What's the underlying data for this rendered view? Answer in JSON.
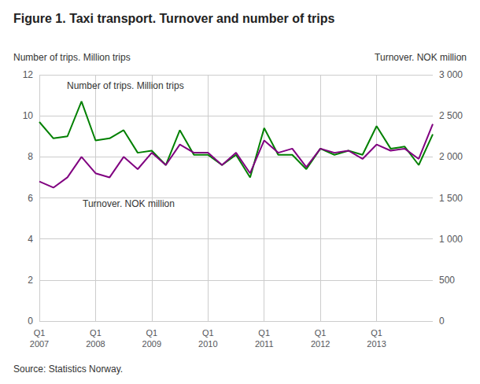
{
  "chart_data": {
    "type": "line",
    "title": "Figure 1. Taxi transport. Turnover and number of trips",
    "ylabel": "Number of trips. Million trips",
    "y2label": "Turnover. NOK million",
    "annotations": [
      "Number of trips. Million trips",
      "Turnover. NOK million"
    ],
    "source": "Source: Statistics Norway.",
    "categories": [
      "Q1\n2007",
      null,
      null,
      null,
      "Q1\n2008",
      null,
      null,
      null,
      "Q1\n2009",
      null,
      null,
      null,
      "Q1\n2010",
      null,
      null,
      null,
      "Q1\n2011",
      null,
      null,
      null,
      "Q1\n2012",
      null,
      null,
      null,
      "Q1\n2013",
      null,
      null,
      null,
      null
    ],
    "series": [
      {
        "color": "#008000",
        "axis": "y",
        "values": [
          9.7,
          8.9,
          9.0,
          10.7,
          8.8,
          8.9,
          9.3,
          8.2,
          8.3,
          7.6,
          9.3,
          8.1,
          8.1,
          7.6,
          8.1,
          7.0,
          9.4,
          8.1,
          8.1,
          7.4,
          8.4,
          8.1,
          8.3,
          8.1,
          9.5,
          8.4,
          8.5,
          7.6,
          9.1
        ]
      },
      {
        "color": "#800080",
        "axis": "y2",
        "values": [
          1700,
          1625,
          1750,
          2000,
          1800,
          1750,
          2000,
          1850,
          2050,
          1900,
          2150,
          2050,
          2050,
          1900,
          2050,
          1800,
          2200,
          2050,
          2100,
          1875,
          2100,
          2050,
          2075,
          1975,
          2150,
          2075,
          2100,
          1975,
          2400
        ]
      }
    ],
    "ylim": [
      0,
      12
    ],
    "yticks": [
      0,
      2,
      4,
      6,
      8,
      10,
      12
    ],
    "y2lim": [
      0,
      3000
    ],
    "y2ticks": [
      0,
      500,
      {
        "value": 1000,
        "label": "1 000"
      },
      {
        "value": 1500,
        "label": "1 500"
      },
      {
        "value": 2000,
        "label": "2 000"
      },
      {
        "value": 2500,
        "label": "2 500"
      },
      {
        "value": 3000,
        "label": "3 000"
      }
    ],
    "grid": true
  }
}
